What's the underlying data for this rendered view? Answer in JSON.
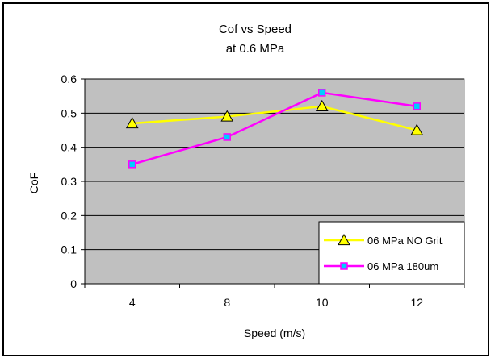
{
  "chart_data": {
    "type": "line",
    "title": "Cof vs Speed",
    "subtitle": "at 0.6 MPa",
    "xlabel": "Speed (m/s)",
    "ylabel": "CoF",
    "categories": [
      "4",
      "8",
      "10",
      "12"
    ],
    "ylim": [
      0,
      0.6
    ],
    "yticks": [
      "0",
      "0.1",
      "0.2",
      "0.3",
      "0.4",
      "0.5",
      "0.6"
    ],
    "grid": true,
    "legend_position": "bottom-right",
    "series": [
      {
        "name": "06 MPa NO Grit",
        "values": [
          0.47,
          0.49,
          0.52,
          0.45
        ],
        "line_color": "#FFFF00",
        "marker": "triangle",
        "marker_color": "#FFFF00"
      },
      {
        "name": "06 MPa 180um",
        "values": [
          0.35,
          0.43,
          0.56,
          0.52
        ],
        "line_color": "#FF00FF",
        "marker": "square",
        "marker_color": "#00CCFF"
      }
    ],
    "colors": {
      "plot_background": "#C0C0C0",
      "gridline": "#000000"
    }
  }
}
